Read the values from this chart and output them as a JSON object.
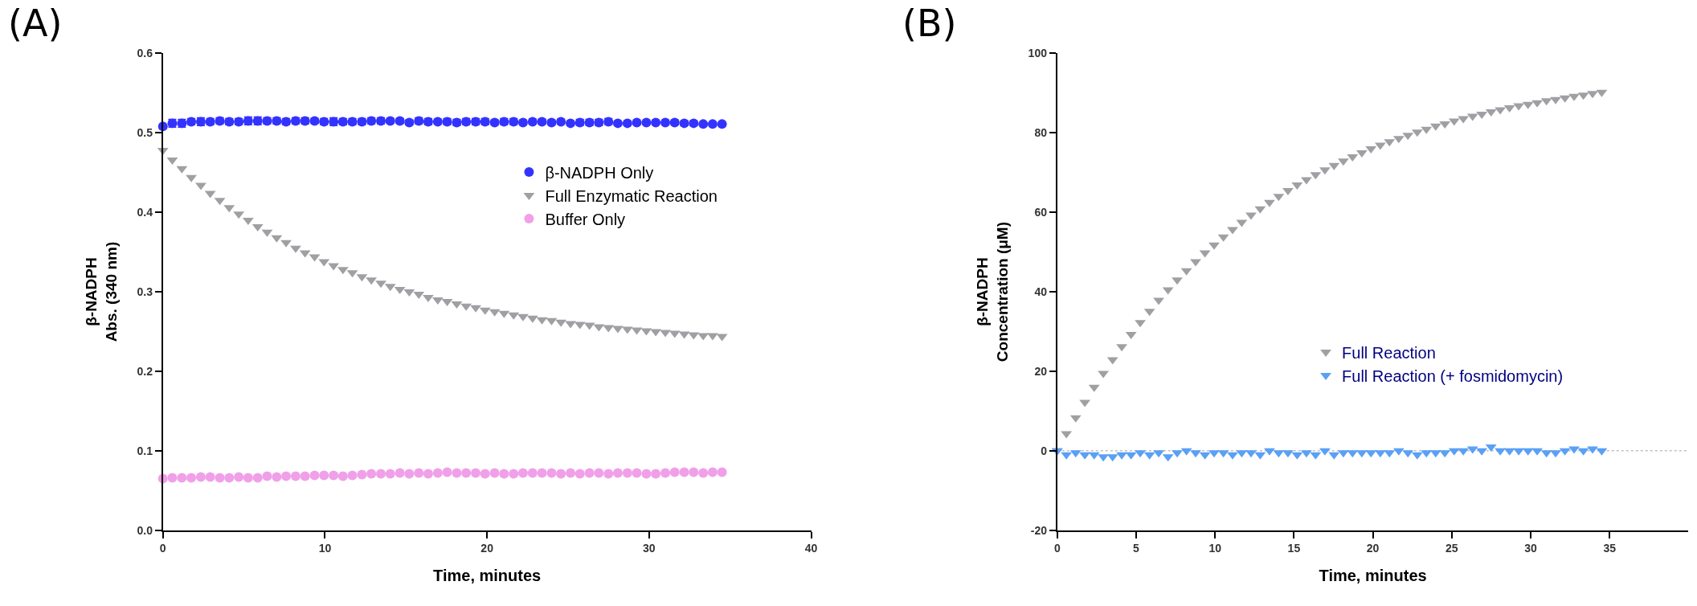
{
  "chart_data": [
    {
      "type": "scatter",
      "title": "(A)",
      "xlabel": "Time, minutes",
      "ylabel": "β-NADPH\nAbs. (340 nm)",
      "xlim": [
        0,
        40
      ],
      "xticks": [
        0,
        10,
        20,
        30,
        40
      ],
      "ylim": [
        0,
        0.6
      ],
      "yticks": [
        {
          "value": 0,
          "label": "0.0"
        },
        0.1,
        0.2,
        0.3,
        0.4,
        0.5,
        0.6
      ],
      "grid": false,
      "legend": "top right",
      "x": [
        0,
        0.58,
        1.17,
        1.75,
        2.34,
        2.92,
        3.51,
        4.09,
        4.68,
        5.26,
        5.85,
        6.43,
        7.02,
        7.6,
        8.19,
        8.77,
        9.36,
        9.94,
        10.53,
        11.11,
        11.69,
        12.28,
        12.86,
        13.45,
        14.03,
        14.62,
        15.2,
        15.79,
        16.37,
        16.96,
        17.54,
        18.13,
        18.71,
        19.3,
        19.88,
        20.47,
        21.05,
        21.64,
        22.22,
        22.81,
        23.39,
        23.98,
        24.56,
        25.15,
        25.73,
        26.32,
        26.9,
        27.49,
        28.07,
        28.66,
        29.24,
        29.83,
        30.41,
        31.0,
        31.58,
        32.17,
        32.75,
        33.34,
        33.92,
        34.5
      ],
      "series": [
        {
          "name": "β-NADPH Only",
          "color": "#3333ff",
          "marker": "circle",
          "values": [
            0.508,
            0.512,
            0.512,
            0.514,
            0.514,
            0.514,
            0.515,
            0.514,
            0.514,
            0.515,
            0.515,
            0.515,
            0.515,
            0.514,
            0.515,
            0.515,
            0.515,
            0.514,
            0.514,
            0.514,
            0.514,
            0.514,
            0.515,
            0.515,
            0.515,
            0.515,
            0.513,
            0.515,
            0.514,
            0.514,
            0.514,
            0.513,
            0.514,
            0.514,
            0.514,
            0.513,
            0.514,
            0.514,
            0.513,
            0.514,
            0.514,
            0.513,
            0.514,
            0.512,
            0.513,
            0.513,
            0.513,
            0.514,
            0.512,
            0.512,
            0.513,
            0.513,
            0.513,
            0.513,
            0.513,
            0.512,
            0.512,
            0.511,
            0.511,
            0.511
          ],
          "errors": [
            null,
            0.005,
            0.005,
            0.004,
            0.005,
            0.004,
            0.004,
            0.004,
            0.004,
            0.005,
            0.005,
            0.004,
            0.004,
            0.004,
            0.004,
            0.004,
            0.003,
            0.004,
            0.005,
            0.004,
            0.004,
            0.004,
            0.004,
            0.004,
            0.003,
            0.003,
            0.003,
            0.004,
            0.004,
            0.003,
            0.004,
            0.004,
            0.004,
            0.004,
            0.004,
            0.003,
            0.004,
            0.004,
            0.003,
            0.003,
            0.003,
            0.003,
            0.003,
            null,
            0.004,
            0.004,
            0.004,
            0.004,
            null,
            null,
            0.002,
            null,
            null,
            null,
            0.003,
            0.003,
            0.003,
            null,
            null,
            null
          ]
        },
        {
          "name": "Full Enzymatic Reaction",
          "color": "#a0a0a4",
          "marker": "triangle",
          "values": [
            0.478,
            0.466,
            0.455,
            0.444,
            0.434,
            0.424,
            0.415,
            0.406,
            0.398,
            0.39,
            0.382,
            0.375,
            0.368,
            0.362,
            0.355,
            0.349,
            0.344,
            0.338,
            0.333,
            0.328,
            0.324,
            0.319,
            0.315,
            0.311,
            0.307,
            0.303,
            0.3,
            0.297,
            0.293,
            0.29,
            0.288,
            0.285,
            0.282,
            0.28,
            0.277,
            0.275,
            0.273,
            0.271,
            0.269,
            0.267,
            0.265,
            0.264,
            0.262,
            0.26,
            0.259,
            0.258,
            0.256,
            0.255,
            0.254,
            0.253,
            0.252,
            0.251,
            0.25,
            0.249,
            0.248,
            0.247,
            0.246,
            0.245,
            0.245,
            0.244
          ]
        },
        {
          "name": "Buffer Only",
          "color": "#f0a0e8",
          "marker": "circle",
          "values": [
            0.065,
            0.066,
            0.066,
            0.066,
            0.067,
            0.067,
            0.066,
            0.066,
            0.067,
            0.066,
            0.066,
            0.068,
            0.067,
            0.068,
            0.068,
            0.068,
            0.069,
            0.069,
            0.069,
            0.068,
            0.069,
            0.07,
            0.071,
            0.071,
            0.071,
            0.072,
            0.071,
            0.072,
            0.071,
            0.072,
            0.073,
            0.072,
            0.072,
            0.072,
            0.071,
            0.072,
            0.071,
            0.071,
            0.072,
            0.072,
            0.072,
            0.072,
            0.071,
            0.072,
            0.071,
            0.072,
            0.072,
            0.071,
            0.072,
            0.072,
            0.072,
            0.071,
            0.071,
            0.072,
            0.073,
            0.073,
            0.073,
            0.072,
            0.073,
            0.073
          ]
        }
      ]
    },
    {
      "type": "scatter",
      "title": "(B)",
      "xlabel": "Time, minutes",
      "ylabel": "β-NADPH\nConcentration (μM)",
      "xlim": [
        0,
        40
      ],
      "xticks": [
        0,
        5,
        10,
        15,
        20,
        25,
        30,
        35
      ],
      "ylim": [
        -20,
        100
      ],
      "yticks": [
        -20,
        0,
        20,
        40,
        60,
        80,
        100
      ],
      "grid": false,
      "legend": "bottom right",
      "ref_lines": [
        {
          "axis": "y",
          "value": 0,
          "color": "#c0c0c0",
          "line_style": "dotted"
        }
      ],
      "x": [
        0,
        0.58,
        1.17,
        1.75,
        2.34,
        2.92,
        3.51,
        4.09,
        4.68,
        5.26,
        5.85,
        6.43,
        7.02,
        7.6,
        8.19,
        8.77,
        9.36,
        9.94,
        10.53,
        11.11,
        11.69,
        12.28,
        12.86,
        13.45,
        14.03,
        14.62,
        15.2,
        15.79,
        16.37,
        16.96,
        17.54,
        18.13,
        18.71,
        19.3,
        19.88,
        20.47,
        21.05,
        21.64,
        22.22,
        22.81,
        23.39,
        23.98,
        24.56,
        25.15,
        25.73,
        26.32,
        26.9,
        27.49,
        28.07,
        28.66,
        29.24,
        29.83,
        30.41,
        31.0,
        31.58,
        32.17,
        32.75,
        33.34,
        33.92,
        34.5
      ],
      "series": [
        {
          "name": "Full Reaction",
          "color": "#a0a0a4",
          "marker": "triangle",
          "values": [
            0,
            4.3,
            8.3,
            12.2,
            16,
            19.5,
            22.9,
            26.2,
            29.3,
            32.3,
            35.1,
            37.9,
            40.5,
            43,
            45.3,
            47.6,
            49.8,
            51.8,
            53.8,
            55.7,
            57.5,
            59.3,
            60.9,
            62.5,
            64,
            65.5,
            66.9,
            68.2,
            69.5,
            70.7,
            71.8,
            72.9,
            74,
            75,
            76,
            76.9,
            77.8,
            78.6,
            79.4,
            80.2,
            80.9,
            81.7,
            82.3,
            83,
            83.6,
            84.2,
            84.7,
            85.3,
            85.8,
            86.3,
            86.8,
            87.2,
            87.6,
            88.1,
            88.4,
            88.8,
            89.2,
            89.5,
            89.9,
            90.2
          ]
        },
        {
          "name": "Full Reaction (+ fosmidomycin)",
          "color": "#5aa0f5",
          "marker": "triangle",
          "values": [
            0,
            -1,
            -0.5,
            -1,
            -1,
            -1.5,
            -1.5,
            -1,
            -1,
            -0.5,
            -1,
            -0.5,
            -1.5,
            -0.5,
            0,
            -0.5,
            -1,
            -0.5,
            -0.5,
            -1,
            -0.5,
            -0.5,
            -1,
            0,
            -0.5,
            -0.5,
            -1,
            -0.5,
            -1,
            0,
            -1,
            -0.5,
            -0.5,
            -0.5,
            -0.5,
            -0.5,
            -0.5,
            0,
            -0.5,
            -1,
            -0.5,
            -0.5,
            -0.5,
            0,
            0,
            0.5,
            0,
            1,
            0,
            0,
            0,
            0,
            0,
            -0.5,
            -0.5,
            0,
            0.5,
            0,
            0.5,
            0
          ]
        }
      ]
    }
  ]
}
